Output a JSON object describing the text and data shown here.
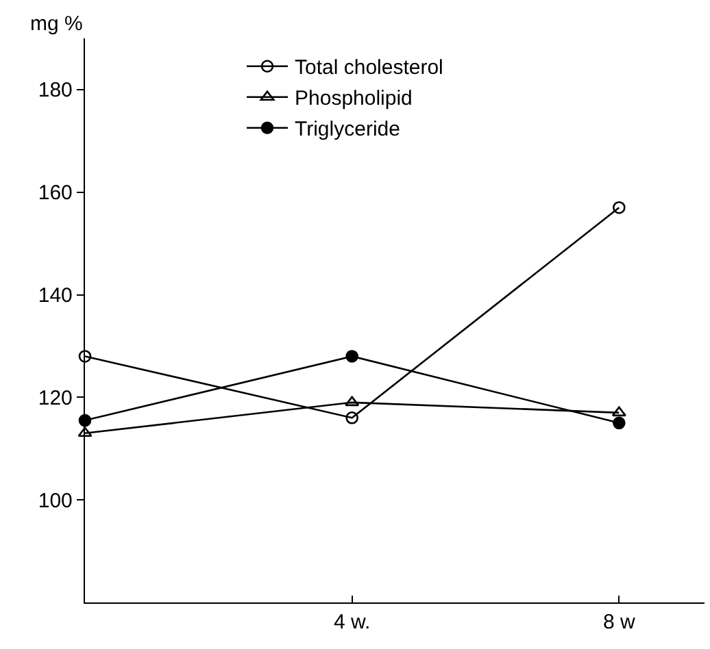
{
  "chart_data": {
    "type": "line",
    "ylabel": "mg %",
    "categories": [
      null,
      "4 w.",
      "8 w"
    ],
    "series": [
      {
        "name": "Total cholesterol",
        "color": "#000000",
        "marker": "circle-open",
        "values": [
          128,
          116,
          157
        ]
      },
      {
        "name": "Phospholipid",
        "color": "#000000",
        "marker": "triangle-open",
        "values": [
          113,
          119,
          117
        ]
      },
      {
        "name": "Triglyceride",
        "color": "#000000",
        "marker": "circle",
        "values": [
          115.5,
          128,
          115
        ]
      }
    ],
    "ylim": [
      80,
      190
    ],
    "yticks": [
      100,
      120,
      140,
      160,
      180
    ],
    "legend": "top",
    "line_style": "solid"
  }
}
